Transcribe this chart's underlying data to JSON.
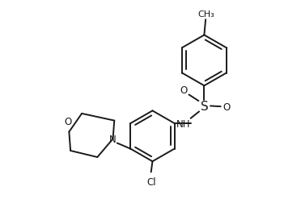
{
  "line_color": "#1a1a1a",
  "bg_color": "#ffffff",
  "line_width": 1.4,
  "font_size": 8.5,
  "figsize": [
    3.51,
    2.53
  ],
  "dpi": 100,
  "xlim": [
    0,
    10
  ],
  "ylim": [
    0,
    7.2
  ],
  "r_hex": 0.9
}
